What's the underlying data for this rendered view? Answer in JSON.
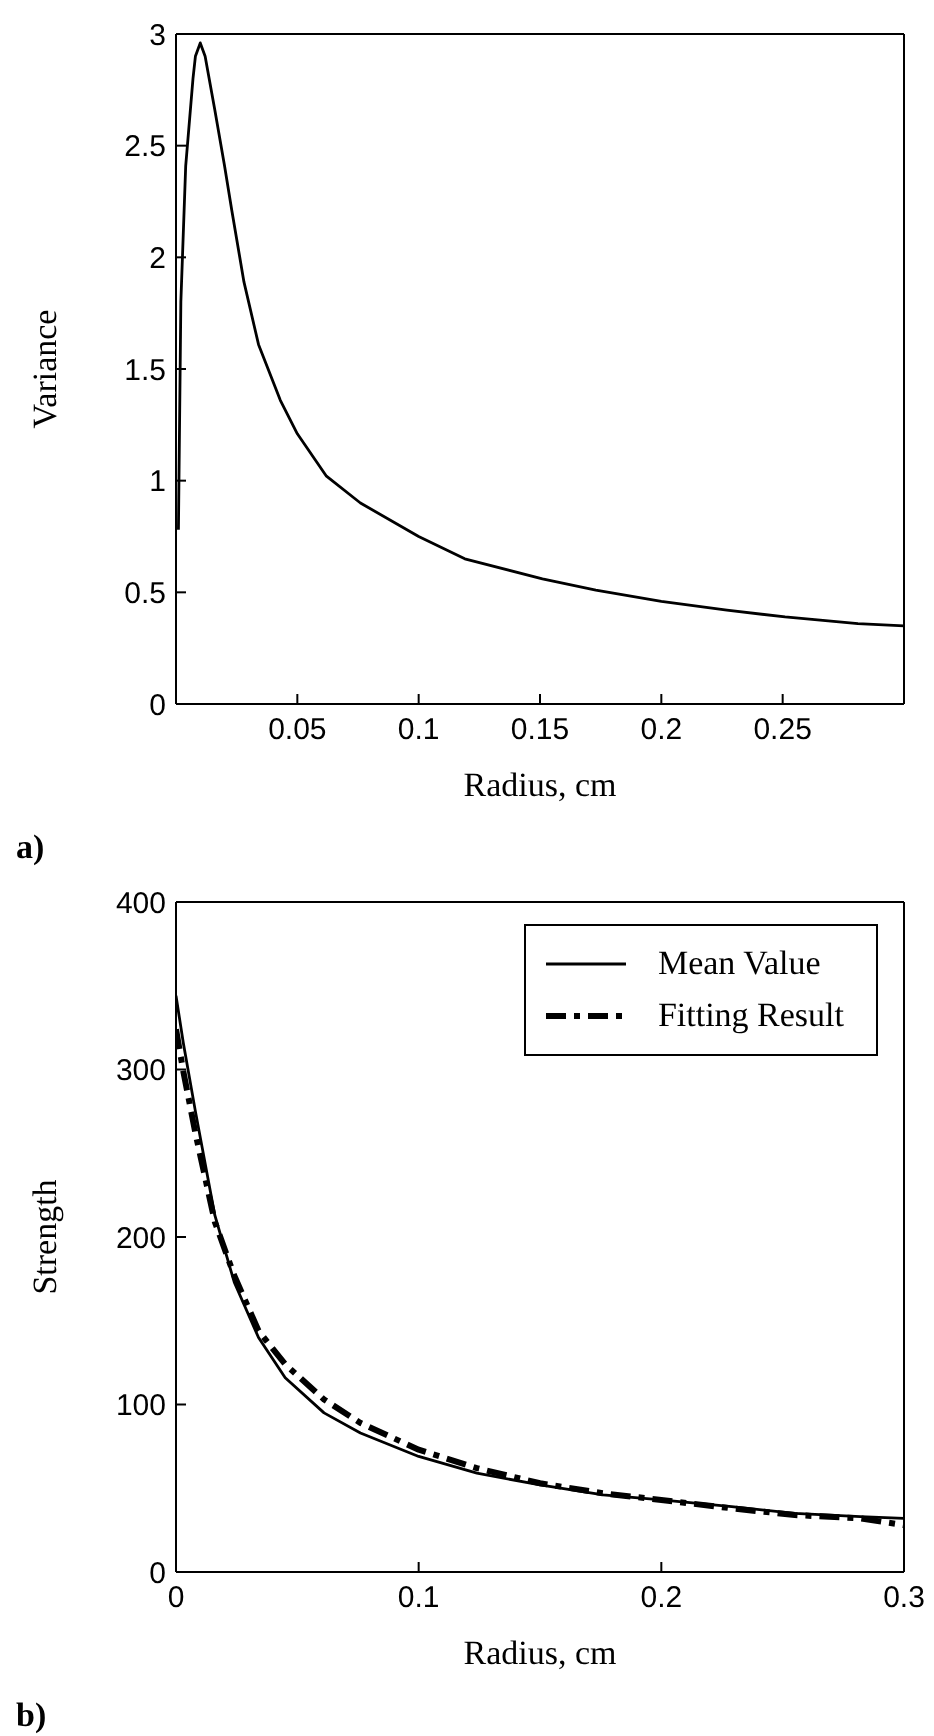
{
  "chart_data": [
    {
      "type": "line",
      "xlabel": "Radius, cm",
      "ylabel": "Variance",
      "annotations": [
        "a)"
      ],
      "xlim": [
        0,
        0.3
      ],
      "xticks": [
        0.05,
        0.1,
        0.15,
        0.2,
        0.25
      ],
      "ylim": [
        0,
        3
      ],
      "yticks": [
        0,
        0.5,
        1,
        1.5,
        2,
        2.5,
        3
      ],
      "legend": false,
      "marker": "none",
      "series": [
        {
          "color": "#000000",
          "line_style": "solid",
          "x": [
            0.001,
            0.002,
            0.004,
            0.007,
            0.008,
            0.01,
            0.012,
            0.016,
            0.02,
            0.023,
            0.028,
            0.034,
            0.043,
            0.05,
            0.062,
            0.076,
            0.1,
            0.119,
            0.151,
            0.173,
            0.2,
            0.227,
            0.251,
            0.281,
            0.3
          ],
          "values": [
            0.78,
            1.8,
            2.41,
            2.8,
            2.9,
            2.96,
            2.9,
            2.66,
            2.41,
            2.21,
            1.89,
            1.61,
            1.36,
            1.21,
            1.02,
            0.9,
            0.75,
            0.65,
            0.56,
            0.51,
            0.46,
            0.42,
            0.39,
            0.36,
            0.35
          ]
        }
      ]
    },
    {
      "type": "line",
      "xlabel": "Radius, cm",
      "ylabel": "Strength",
      "annotations": [
        "b)"
      ],
      "xlim": [
        0,
        0.3
      ],
      "xticks": [
        0,
        0.1,
        0.2,
        0.3
      ],
      "ylim": [
        0,
        400
      ],
      "yticks": [
        0,
        100,
        200,
        300,
        400
      ],
      "legend": "top right",
      "marker": "none",
      "series": [
        {
          "name": "Mean Value",
          "color": "#000000",
          "line_style": "solid",
          "x": [
            0,
            0.003,
            0.008,
            0.016,
            0.024,
            0.034,
            0.045,
            0.061,
            0.076,
            0.1,
            0.124,
            0.15,
            0.176,
            0.2,
            0.229,
            0.255,
            0.282,
            0.3
          ],
          "values": [
            344,
            316,
            275,
            213,
            173,
            140,
            116,
            95,
            83,
            69,
            59,
            52,
            46,
            43,
            39,
            35,
            33,
            32
          ]
        },
        {
          "name": "Fitting Result",
          "color": "#000000",
          "line_style": "dashed",
          "x": [
            0,
            0.003,
            0.008,
            0.016,
            0.024,
            0.034,
            0.045,
            0.061,
            0.076,
            0.1,
            0.124,
            0.15,
            0.176,
            0.2,
            0.229,
            0.255,
            0.282,
            0.3
          ],
          "values": [
            324,
            299,
            262,
            209,
            177,
            144,
            124,
            103,
            89,
            73,
            62,
            53,
            47,
            43,
            38,
            34,
            32,
            28
          ]
        }
      ]
    }
  ]
}
